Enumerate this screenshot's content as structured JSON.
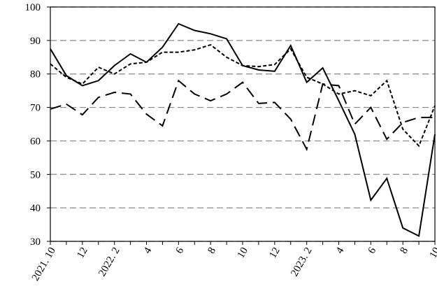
{
  "chart_data": {
    "type": "line",
    "categories": [
      "2021. 10",
      null,
      "12",
      null,
      "2022. 2",
      null,
      "4",
      null,
      "6",
      null,
      "8",
      null,
      "10",
      null,
      "12",
      null,
      "2023. 2",
      null,
      "4",
      null,
      "6",
      null,
      "8",
      null,
      "10"
    ],
    "series": [
      {
        "color": "#000000",
        "dash": "solid",
        "values": [
          87.5,
          79.5,
          76.5,
          78,
          82.5,
          86,
          83.5,
          88,
          95,
          93,
          92,
          90.5,
          82.5,
          81.2,
          80.8,
          88.5,
          77.5,
          81.8,
          72,
          62,
          42.3,
          48.8,
          34,
          31.6,
          62
        ]
      },
      {
        "color": "#000000",
        "dash": "dotted",
        "values": [
          83,
          79,
          77,
          82,
          80,
          83,
          83.5,
          86.5,
          86.5,
          87.2,
          88.7,
          85,
          82.5,
          82.2,
          82.8,
          87.5,
          79,
          77,
          74,
          75,
          73.5,
          78,
          63.5,
          58.5,
          70.5
        ]
      },
      {
        "color": "#000000",
        "dash": "dashed",
        "values": [
          69.5,
          71,
          67.8,
          73,
          74.5,
          74,
          68,
          64.5,
          78,
          74,
          72,
          74,
          77.5,
          71.2,
          71.5,
          66.5,
          57.5,
          77,
          76.5,
          65,
          70,
          60.5,
          65.5,
          67,
          67
        ]
      }
    ],
    "ylim": [
      30,
      100
    ],
    "yticks": [
      30,
      40,
      50,
      60,
      70,
      80,
      90,
      100
    ],
    "grid": true
  }
}
